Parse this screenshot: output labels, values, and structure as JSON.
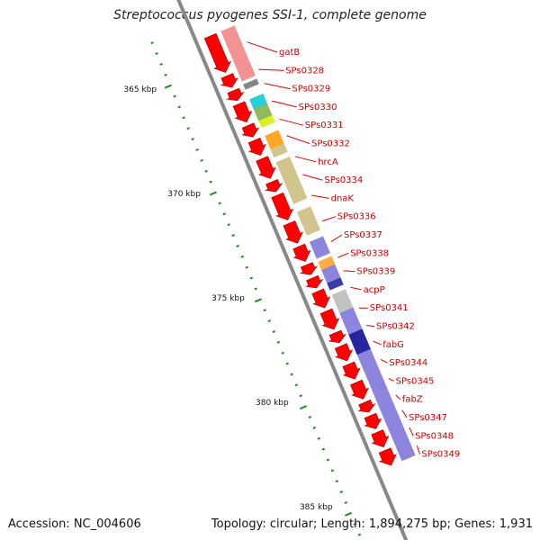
{
  "title": "Streptococcus pyogenes SSI-1, complete genome",
  "footer": {
    "accession": "Accession: NC_004606",
    "summary": "Topology: circular; Length: 1,894,275 bp; Genes: 1,931"
  },
  "colors": {
    "backbone": "#888888",
    "forward_gene": "#ff0000",
    "label": "#cc0000",
    "leader_line": "#dd0000",
    "tick": "#228b22"
  },
  "scale_labels": [
    "365 kbp",
    "370 kbp",
    "375 kbp",
    "380 kbp",
    "385 kbp"
  ],
  "gene_labels": [
    "gatB",
    "SPs0328",
    "SPs0329",
    "SPs0330",
    "SPs0331",
    "SPs0332",
    "hrcA",
    "SPs0334",
    "dnaK",
    "SPs0336",
    "SPs0337",
    "SPs0338",
    "SPs0339",
    "acpP",
    "SPs0341",
    "SPs0342",
    "fabG",
    "SPs0344",
    "SPs0345",
    "fabZ",
    "SPs0347",
    "SPs0348",
    "SPs0349"
  ],
  "cog_colors": [
    "#f08080",
    "#707070",
    "#00c8d0",
    "#7cb040",
    "#d8f000",
    "#ff9900",
    "#c8bc78",
    "#7a70d8",
    "#ffa020",
    "#1a1a9a",
    "#b8b8b8",
    "#000090"
  ]
}
